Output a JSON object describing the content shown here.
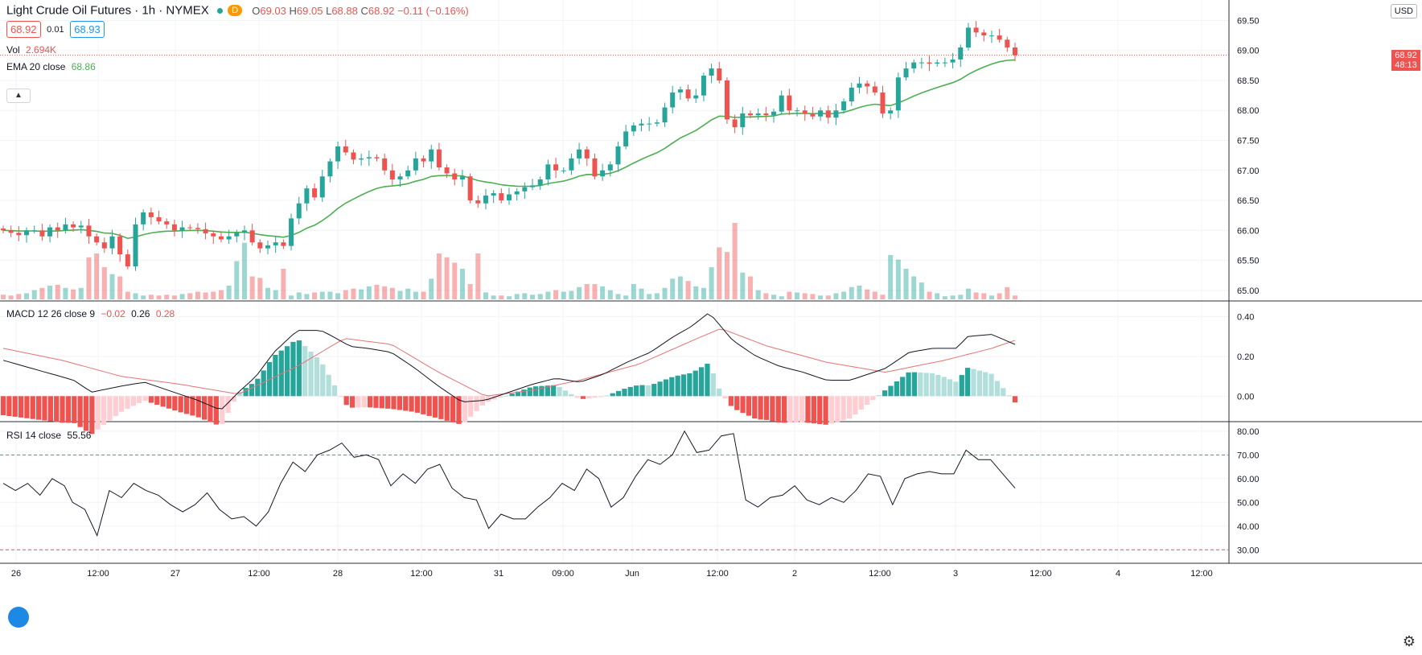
{
  "header": {
    "symbol_title": "Light Crude Oil Futures · 1h · NYMEX",
    "session_badge": "D",
    "ohlc": {
      "open_label": "O",
      "open": "69.03",
      "high_label": "H",
      "high": "69.05",
      "low_label": "L",
      "low": "68.88",
      "close_label": "C",
      "close": "68.92",
      "change": "−0.11 (−0.16%)"
    },
    "bid": "68.92",
    "spread": "0.01",
    "ask": "68.93"
  },
  "indicators": {
    "volume": {
      "name": "Vol",
      "value": "2.694K"
    },
    "ema": {
      "name": "EMA 20 close",
      "value": "68.86"
    },
    "macd": {
      "name": "MACD 12 26 close 9",
      "hist": "−0.02",
      "macd": "0.26",
      "signal": "0.28"
    },
    "rsi": {
      "name": "RSI 14 close",
      "value": "55.56"
    }
  },
  "axis": {
    "currency": "USD",
    "last_price": "68.92",
    "countdown": "48:13"
  },
  "colors": {
    "up": "#26a69a",
    "down": "#ef5350",
    "ema": "#4caf50",
    "macd_line": "#131722",
    "signal_line": "#e57373",
    "grid": "#f0f3fa"
  },
  "chart_data": [
    {
      "type": "candlestick",
      "title": "Light Crude Oil Futures · 1h · NYMEX",
      "x_labels": [
        "26",
        "12:00",
        "27",
        "12:00",
        "28",
        "12:00",
        "31",
        "09:00",
        "Jun",
        "12:00",
        "2",
        "12:00",
        "3",
        "12:00",
        "4",
        "12:00"
      ],
      "ylim": [
        64.85,
        69.6
      ],
      "y_ticks": [
        65.0,
        65.5,
        66.0,
        66.5,
        67.0,
        67.5,
        68.0,
        68.5,
        69.0,
        69.5
      ],
      "close_series": [
        66.0,
        65.96,
        65.92,
        66.0,
        66.0,
        65.9,
        66.05,
        66.0,
        66.1,
        66.05,
        66.08,
        65.9,
        65.8,
        65.7,
        65.9,
        65.6,
        65.4,
        66.1,
        66.3,
        66.22,
        66.15,
        66.1,
        66.0,
        66.05,
        66.04,
        66.02,
        65.95,
        65.9,
        65.85,
        65.9,
        65.96,
        66.0,
        65.8,
        65.7,
        65.75,
        65.8,
        65.74,
        66.2,
        66.45,
        66.7,
        66.55,
        66.9,
        67.15,
        67.4,
        67.3,
        67.18,
        67.2,
        67.22,
        67.2,
        67.0,
        66.85,
        66.9,
        67.0,
        67.2,
        67.15,
        67.35,
        67.05,
        66.95,
        66.85,
        66.9,
        66.5,
        66.45,
        66.58,
        66.62,
        66.5,
        66.6,
        66.65,
        66.72,
        66.75,
        66.85,
        67.1,
        67.0,
        67.0,
        67.2,
        67.35,
        67.2,
        66.9,
        67.0,
        67.1,
        67.4,
        67.65,
        67.75,
        67.78,
        67.78,
        67.8,
        68.05,
        68.3,
        68.35,
        68.2,
        68.25,
        68.58,
        68.7,
        68.5,
        67.85,
        67.72,
        67.95,
        67.92,
        67.95,
        67.92,
        67.98,
        68.25,
        68.0,
        68.0,
        67.95,
        67.9,
        68.0,
        67.88,
        68.0,
        68.15,
        68.38,
        68.45,
        68.4,
        68.3,
        67.95,
        68.0,
        68.55,
        68.7,
        68.8,
        68.8,
        68.78,
        68.8,
        68.8,
        68.85,
        69.05,
        69.38,
        69.3,
        69.25,
        69.25,
        69.18,
        69.05,
        68.92
      ],
      "volume_max": 1.0,
      "volume_relative": [
        0.06,
        0.05,
        0.07,
        0.08,
        0.12,
        0.15,
        0.18,
        0.19,
        0.15,
        0.13,
        0.15,
        0.55,
        0.6,
        0.42,
        0.33,
        0.3,
        0.1,
        0.08,
        0.05,
        0.06,
        0.05,
        0.06,
        0.05,
        0.07,
        0.08,
        0.1,
        0.09,
        0.1,
        0.12,
        0.18,
        0.5,
        0.74,
        0.3,
        0.28,
        0.15,
        0.12,
        0.4,
        0.05,
        0.09,
        0.07,
        0.09,
        0.1,
        0.1,
        0.08,
        0.12,
        0.14,
        0.13,
        0.17,
        0.19,
        0.17,
        0.15,
        0.11,
        0.14,
        0.1,
        0.1,
        0.27,
        0.6,
        0.55,
        0.48,
        0.4,
        0.2,
        0.6,
        0.09,
        0.05,
        0.05,
        0.04,
        0.07,
        0.08,
        0.06,
        0.07,
        0.1,
        0.12,
        0.1,
        0.11,
        0.16,
        0.2,
        0.2,
        0.17,
        0.12,
        0.07,
        0.05,
        0.2,
        0.14,
        0.07,
        0.08,
        0.15,
        0.27,
        0.3,
        0.24,
        0.17,
        0.15,
        0.42,
        0.68,
        0.62,
        1.0,
        0.35,
        0.3,
        0.12,
        0.08,
        0.06,
        0.04,
        0.1,
        0.09,
        0.08,
        0.07,
        0.05,
        0.05,
        0.08,
        0.1,
        0.16,
        0.18,
        0.13,
        0.1,
        0.06,
        0.58,
        0.52,
        0.4,
        0.3,
        0.22,
        0.1,
        0.08,
        0.04,
        0.05,
        0.06,
        0.14,
        0.09,
        0.08,
        0.05,
        0.08,
        0.16,
        0.05
      ]
    },
    {
      "type": "macd",
      "title": "MACD 12 26 close 9",
      "ylim": [
        -0.12,
        0.47
      ],
      "y_ticks": [
        0.0,
        0.2,
        0.4
      ],
      "macd_keypoints": [
        [
          0,
          0.18
        ],
        [
          6,
          0.13
        ],
        [
          12,
          0.08
        ],
        [
          15,
          0.02
        ],
        [
          20,
          0.05
        ],
        [
          24,
          0.07
        ],
        [
          28,
          0.03
        ],
        [
          33,
          -0.02
        ],
        [
          37,
          -0.07
        ],
        [
          40,
          0.02
        ],
        [
          43,
          0.1
        ],
        [
          46,
          0.22
        ],
        [
          50,
          0.33
        ],
        [
          54,
          0.33
        ],
        [
          56,
          0.3
        ],
        [
          59,
          0.25
        ],
        [
          62,
          0.24
        ],
        [
          66,
          0.22
        ],
        [
          70,
          0.14
        ],
        [
          74,
          0.05
        ],
        [
          78,
          -0.03
        ],
        [
          82,
          -0.02
        ],
        [
          86,
          0.02
        ],
        [
          90,
          0.06
        ],
        [
          94,
          0.09
        ],
        [
          98,
          0.07
        ],
        [
          102,
          0.11
        ],
        [
          106,
          0.17
        ],
        [
          110,
          0.22
        ],
        [
          114,
          0.3
        ],
        [
          117,
          0.35
        ],
        [
          120,
          0.42
        ],
        [
          124,
          0.28
        ],
        [
          128,
          0.2
        ],
        [
          132,
          0.15
        ],
        [
          136,
          0.12
        ],
        [
          140,
          0.08
        ],
        [
          144,
          0.08
        ],
        [
          148,
          0.12
        ],
        [
          150,
          0.14
        ],
        [
          154,
          0.22
        ],
        [
          158,
          0.24
        ],
        [
          162,
          0.24
        ],
        [
          164,
          0.3
        ],
        [
          168,
          0.31
        ],
        [
          172,
          0.26
        ]
      ],
      "signal_keypoints": [
        [
          0,
          0.24
        ],
        [
          10,
          0.18
        ],
        [
          20,
          0.1
        ],
        [
          30,
          0.06
        ],
        [
          40,
          0.01
        ],
        [
          50,
          0.15
        ],
        [
          58,
          0.29
        ],
        [
          66,
          0.26
        ],
        [
          74,
          0.12
        ],
        [
          82,
          0.0
        ],
        [
          90,
          0.03
        ],
        [
          98,
          0.08
        ],
        [
          108,
          0.16
        ],
        [
          118,
          0.29
        ],
        [
          122,
          0.34
        ],
        [
          130,
          0.25
        ],
        [
          140,
          0.17
        ],
        [
          150,
          0.12
        ],
        [
          160,
          0.18
        ],
        [
          168,
          0.24
        ],
        [
          172,
          0.28
        ]
      ],
      "histogram_count": 172
    },
    {
      "type": "line",
      "title": "RSI 14 close",
      "ylim": [
        25,
        83
      ],
      "y_ticks": [
        30.0,
        40.0,
        50.0,
        60.0,
        70.0,
        80.0
      ],
      "bands": [
        30,
        70
      ],
      "rsi_keypoints": [
        [
          0,
          58
        ],
        [
          3,
          55
        ],
        [
          6,
          58
        ],
        [
          9,
          53
        ],
        [
          12,
          60
        ],
        [
          15,
          57
        ],
        [
          17,
          50
        ],
        [
          20,
          47
        ],
        [
          23,
          36
        ],
        [
          26,
          55
        ],
        [
          29,
          52
        ],
        [
          32,
          58
        ],
        [
          35,
          55
        ],
        [
          38,
          53
        ],
        [
          41,
          49
        ],
        [
          44,
          46
        ],
        [
          47,
          49
        ],
        [
          50,
          54
        ],
        [
          53,
          47
        ],
        [
          56,
          43
        ],
        [
          59,
          44
        ],
        [
          62,
          40
        ],
        [
          65,
          46
        ],
        [
          68,
          58
        ],
        [
          71,
          67
        ],
        [
          74,
          63
        ],
        [
          77,
          70
        ],
        [
          80,
          72
        ],
        [
          83,
          75
        ],
        [
          86,
          69
        ],
        [
          89,
          70
        ],
        [
          92,
          68
        ],
        [
          95,
          57
        ],
        [
          98,
          62
        ],
        [
          101,
          58
        ],
        [
          104,
          64
        ],
        [
          107,
          66
        ],
        [
          110,
          56
        ],
        [
          113,
          52
        ],
        [
          116,
          51
        ],
        [
          119,
          39
        ],
        [
          122,
          45
        ],
        [
          125,
          43
        ],
        [
          128,
          43
        ],
        [
          131,
          48
        ],
        [
          134,
          52
        ],
        [
          137,
          58
        ],
        [
          140,
          55
        ],
        [
          143,
          64
        ],
        [
          146,
          60
        ],
        [
          149,
          48
        ],
        [
          152,
          52
        ],
        [
          155,
          61
        ],
        [
          158,
          68
        ],
        [
          161,
          66
        ],
        [
          164,
          70
        ],
        [
          167,
          80
        ],
        [
          170,
          71
        ],
        [
          173,
          72
        ],
        [
          176,
          78
        ],
        [
          179,
          79
        ],
        [
          182,
          51
        ],
        [
          185,
          48
        ],
        [
          188,
          52
        ],
        [
          191,
          53
        ],
        [
          194,
          57
        ],
        [
          197,
          51
        ],
        [
          200,
          49
        ],
        [
          203,
          52
        ],
        [
          206,
          50
        ],
        [
          209,
          55
        ],
        [
          212,
          62
        ],
        [
          215,
          61
        ],
        [
          218,
          49
        ],
        [
          221,
          60
        ],
        [
          224,
          62
        ],
        [
          227,
          63
        ],
        [
          230,
          62
        ],
        [
          233,
          62
        ],
        [
          236,
          72
        ],
        [
          239,
          68
        ],
        [
          242,
          68
        ],
        [
          245,
          62
        ],
        [
          248,
          56
        ]
      ]
    }
  ]
}
